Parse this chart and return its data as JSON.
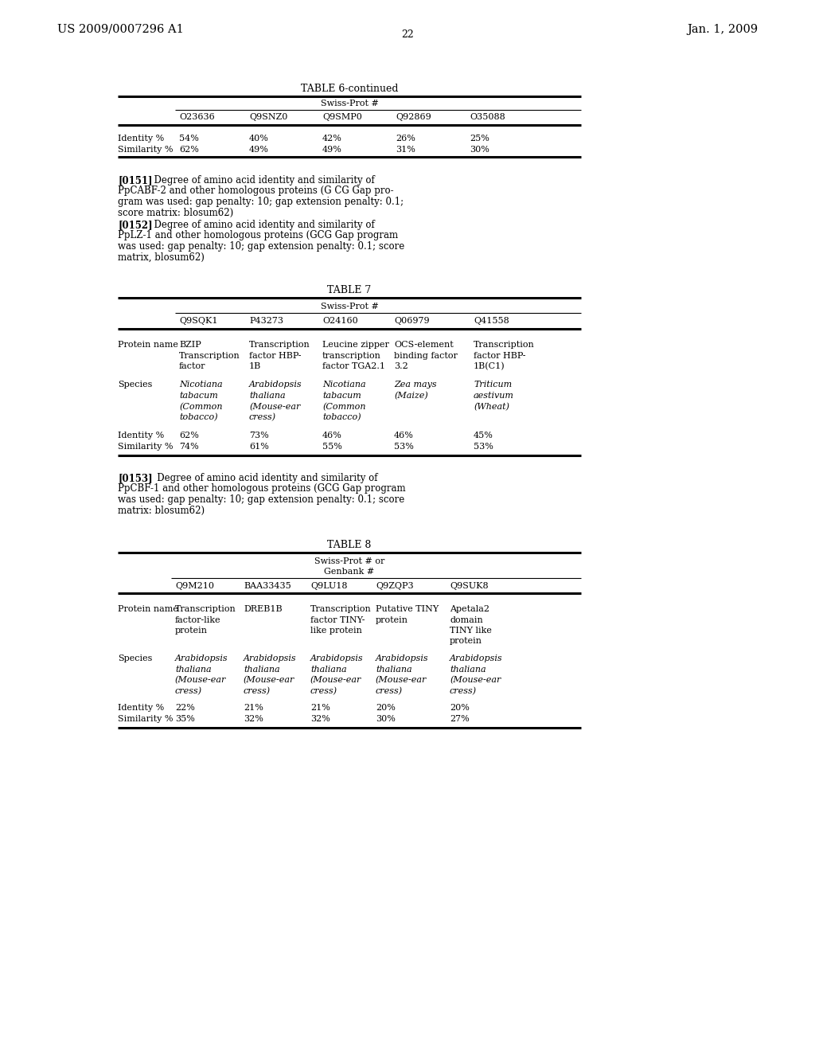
{
  "page_header_left": "US 2009/0007296 A1",
  "page_header_right": "Jan. 1, 2009",
  "page_number": "22",
  "background_color": "#ffffff",
  "text_color": "#000000",
  "table6_title": "TABLE 6-continued",
  "table6_subheader": "Swiss-Prot #",
  "table6_cols": [
    "O23636",
    "Q9SNZ0",
    "Q9SMP0",
    "Q92869",
    "O35088"
  ],
  "table6_row1": [
    "Identity %",
    "54%",
    "40%",
    "42%",
    "26%",
    "25%"
  ],
  "table6_row2": [
    "Similarity %",
    "62%",
    "49%",
    "49%",
    "31%",
    "30%"
  ],
  "para151_bold": "[0151]",
  "para151_text": "   Degree of amino acid identity and similarity of\nPpCABF-2 and other homologous proteins (G CG Gap pro-\ngram was used: gap penalty: 10; gap extension penalty: 0.1;\nscore matrix: blosum62)",
  "para152_bold": "[0152]",
  "para152_text": "   Degree of amino acid identity and similarity of\nPpLZ-1 and other homologous proteins (GCG Gap program\nwas used: gap penalty: 10; gap extension penalty: 0.1; score\nmatrix, blosum62)",
  "table7_title": "TABLE 7",
  "table7_subheader": "Swiss-Prot #",
  "table7_cols": [
    "Q9SQK1",
    "P43273",
    "O24160",
    "Q06979",
    "Q41558"
  ],
  "table7_pn_label": "Protein name",
  "table7_pn_lines": [
    [
      "BZIP",
      "Transcription",
      "Leucine zipper",
      "OCS-element",
      "Transcription"
    ],
    [
      "Transcription",
      "factor HBP-",
      "transcription",
      "binding factor",
      "factor HBP-"
    ],
    [
      "factor",
      "1B",
      "factor TGA2.1",
      "3.2",
      "1B(C1)"
    ]
  ],
  "table7_sp_label": "Species",
  "table7_sp_lines": [
    [
      "Nicotiana",
      "Arabidopsis",
      "Nicotiana",
      "Zea mays",
      "Triticum"
    ],
    [
      "tabacum",
      "thaliana",
      "tabacum",
      "(Maize)",
      "aestivum"
    ],
    [
      "(Common",
      "(Mouse-ear",
      "(Common",
      "",
      "(Wheat)"
    ],
    [
      "tobacco)",
      "cress)",
      "tobacco)",
      "",
      ""
    ]
  ],
  "table7_id_row": [
    "Identity %",
    "62%",
    "73%",
    "46%",
    "46%",
    "45%"
  ],
  "table7_sim_row": [
    "Similarity %",
    "74%",
    "61%",
    "55%",
    "53%",
    "53%"
  ],
  "para153_bold": "[0153]",
  "para153_text": "   Degree of amino acid identity and similarity of\nPpCBF-1 and other homologous proteins (GCG Gap program\nwas used: gap penalty: 10; gap extension penalty: 0.1; score\nmatrix: blosum62)",
  "table8_title": "TABLE 8",
  "table8_subheader1": "Swiss-Prot # or",
  "table8_subheader2": "Genbank #",
  "table8_cols": [
    "Q9M210",
    "BAA33435",
    "Q9LU18",
    "Q9ZQP3",
    "Q9SUK8"
  ],
  "table8_pn_label": "Protein name",
  "table8_pn_lines": [
    [
      "Transcription",
      "DREB1B",
      "Transcription",
      "Putative TINY",
      "Apetala2"
    ],
    [
      "factor-like",
      "",
      "factor TINY-",
      "protein",
      "domain"
    ],
    [
      "protein",
      "",
      "like protein",
      "",
      "TINY like"
    ],
    [
      "",
      "",
      "",
      "",
      "protein"
    ]
  ],
  "table8_sp_label": "Species",
  "table8_sp_lines": [
    [
      "Arabidopsis",
      "Arabidopsis",
      "Arabidopsis",
      "Arabidopsis",
      "Arabidopsis"
    ],
    [
      "thaliana",
      "thaliana",
      "thaliana",
      "thaliana",
      "thaliana"
    ],
    [
      "(Mouse-ear",
      "(Mouse-ear",
      "(Mouse-ear",
      "(Mouse-ear",
      "(Mouse-ear"
    ],
    [
      "cress)",
      "cress)",
      "cress)",
      "cress)",
      "cress)"
    ]
  ],
  "table8_id_row": [
    "Identity %",
    "22%",
    "21%",
    "21%",
    "20%",
    "20%"
  ],
  "table8_sim_row": [
    "Similarity %",
    "35%",
    "32%",
    "32%",
    "30%",
    "27%"
  ]
}
